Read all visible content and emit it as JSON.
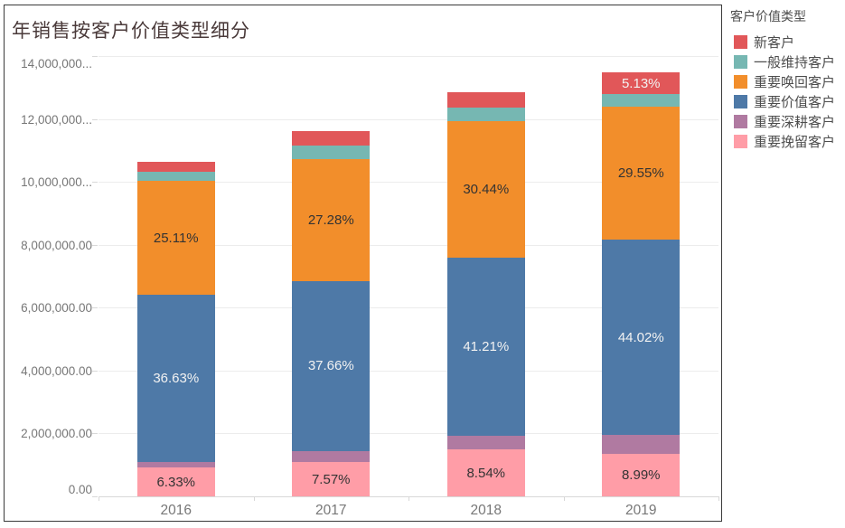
{
  "title": "年销售按客户价值类型细分",
  "legend": {
    "title": "客户价值类型",
    "items": [
      {
        "label": "新客户",
        "color": "#e15759"
      },
      {
        "label": "一般维持客户",
        "color": "#76b7b2"
      },
      {
        "label": "重要唤回客户",
        "color": "#f28e2b"
      },
      {
        "label": "重要价值客户",
        "color": "#4e79a7"
      },
      {
        "label": "重要深耕客户",
        "color": "#b07aa1"
      },
      {
        "label": "重要挽留客户",
        "color": "#ff9da7"
      }
    ]
  },
  "chart_data": {
    "type": "bar",
    "stacked": true,
    "title": "年销售按客户价值类型细分",
    "categories": [
      "2016",
      "2017",
      "2018",
      "2019"
    ],
    "xlabel": "",
    "ylabel": "",
    "ylim": [
      0,
      14000000
    ],
    "grid": true,
    "legend_position": "top-right",
    "y_ticks": [
      {
        "value": 0,
        "label": "0.00"
      },
      {
        "value": 2000000,
        "label": "2,000,000.00"
      },
      {
        "value": 4000000,
        "label": "4,000,000.00"
      },
      {
        "value": 6000000,
        "label": "6,000,000.00"
      },
      {
        "value": 8000000,
        "label": "8,000,000.00"
      },
      {
        "value": 10000000,
        "label": "10,000,000..."
      },
      {
        "value": 12000000,
        "label": "12,000,000..."
      },
      {
        "value": 14000000,
        "label": "14,000,000..."
      }
    ],
    "series": [
      {
        "name": "重要挽留客户",
        "color": "#ff9da7",
        "values": [
          910000,
          1080000,
          1490000,
          1340000
        ],
        "labels": [
          "6.33%",
          "7.57%",
          "8.54%",
          "8.99%"
        ],
        "label_color": "#333333"
      },
      {
        "name": "重要深耕客户",
        "color": "#b07aa1",
        "values": [
          190000,
          350000,
          430000,
          600000
        ],
        "labels": [
          null,
          null,
          null,
          null
        ],
        "label_color": "#333333"
      },
      {
        "name": "重要价值客户",
        "color": "#4e79a7",
        "values": [
          5320000,
          5420000,
          5660000,
          6220000
        ],
        "labels": [
          "36.63%",
          "37.66%",
          "41.21%",
          "44.02%"
        ],
        "label_color": "#f2f2f2"
      },
      {
        "name": "重要唤回客户",
        "color": "#f28e2b",
        "values": [
          3600000,
          3880000,
          4360000,
          4230000
        ],
        "labels": [
          "25.11%",
          "27.28%",
          "30.44%",
          "29.55%"
        ],
        "label_color": "#333333"
      },
      {
        "name": "一般维持客户",
        "color": "#76b7b2",
        "values": [
          290000,
          430000,
          430000,
          400000
        ],
        "labels": [
          null,
          null,
          null,
          null
        ],
        "label_color": "#333333"
      },
      {
        "name": "新客户",
        "color": "#e15759",
        "values": [
          340000,
          450000,
          480000,
          690000
        ],
        "labels": [
          null,
          null,
          null,
          "5.13%"
        ],
        "label_color": "#f2f2f2"
      }
    ],
    "totals": [
      10650000,
      11610000,
      12850000,
      13480000
    ]
  }
}
